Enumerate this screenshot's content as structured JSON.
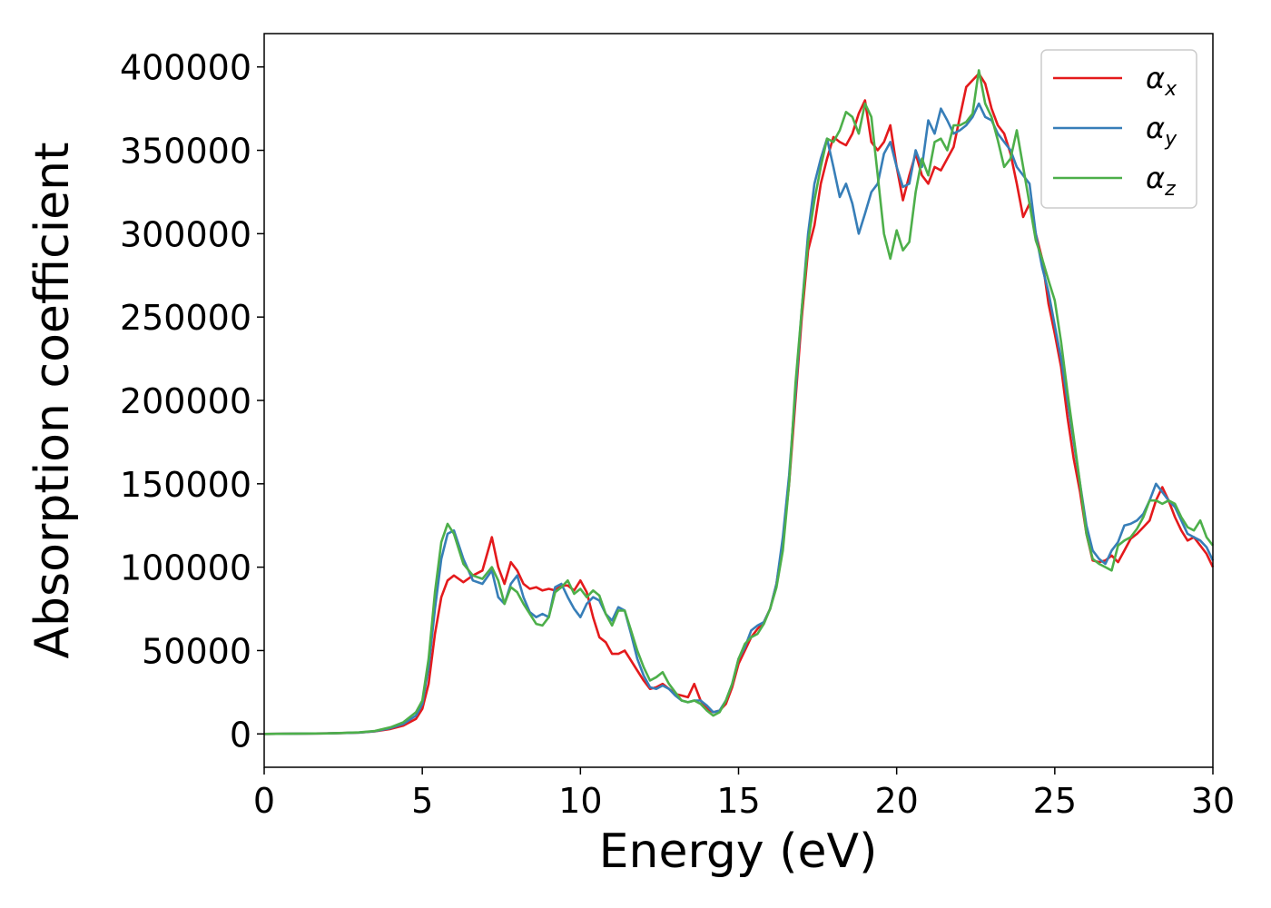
{
  "chart_data": {
    "type": "line",
    "title": "",
    "xlabel": "Energy (eV)",
    "ylabel": "Absorption coefficient",
    "xlim": [
      0,
      30
    ],
    "ylim": [
      -20000,
      420000
    ],
    "x_ticks": [
      0,
      5,
      10,
      15,
      20,
      25,
      30
    ],
    "y_ticks": [
      0,
      50000,
      100000,
      150000,
      200000,
      250000,
      300000,
      350000,
      400000
    ],
    "x_tick_labels": [
      "0",
      "5",
      "10",
      "15",
      "20",
      "25",
      "30"
    ],
    "y_tick_labels": [
      "0",
      "50000",
      "100000",
      "150000",
      "200000",
      "250000",
      "300000",
      "350000",
      "400000"
    ],
    "grid": false,
    "legend_position": "top-right",
    "series": [
      {
        "name": "α_x",
        "label_main": "α",
        "label_sub": "x",
        "color": "#e41a1c",
        "x": [
          0,
          2,
          3,
          3.5,
          4,
          4.4,
          4.8,
          5.0,
          5.2,
          5.4,
          5.6,
          5.8,
          6.0,
          6.3,
          6.6,
          6.9,
          7.2,
          7.4,
          7.6,
          7.8,
          8.0,
          8.2,
          8.4,
          8.6,
          8.8,
          9.0,
          9.2,
          9.4,
          9.6,
          9.8,
          10.0,
          10.2,
          10.4,
          10.6,
          10.8,
          11.0,
          11.2,
          11.4,
          11.6,
          11.8,
          12.0,
          12.2,
          12.4,
          12.6,
          12.8,
          13.0,
          13.2,
          13.4,
          13.6,
          13.8,
          14.0,
          14.2,
          14.4,
          14.6,
          14.8,
          15.0,
          15.2,
          15.4,
          15.6,
          15.8,
          16.0,
          16.2,
          16.4,
          16.6,
          16.8,
          17.0,
          17.2,
          17.4,
          17.6,
          17.8,
          18.0,
          18.2,
          18.4,
          18.6,
          18.8,
          19.0,
          19.2,
          19.4,
          19.6,
          19.8,
          20.0,
          20.2,
          20.4,
          20.6,
          20.8,
          21.0,
          21.2,
          21.4,
          21.6,
          21.8,
          22.0,
          22.2,
          22.4,
          22.6,
          22.8,
          23.0,
          23.2,
          23.4,
          23.6,
          23.8,
          24.0,
          24.2,
          24.4,
          24.6,
          24.8,
          25.0,
          25.2,
          25.4,
          25.6,
          25.8,
          26.0,
          26.2,
          26.4,
          26.6,
          26.8,
          27.0,
          27.2,
          27.4,
          27.6,
          27.8,
          28.0,
          28.2,
          28.4,
          28.6,
          28.8,
          29.0,
          29.2,
          29.4,
          29.6,
          29.8,
          30.0
        ],
        "y": [
          0,
          300,
          800,
          1500,
          3000,
          5000,
          9000,
          15000,
          30000,
          60000,
          82000,
          92000,
          95000,
          91000,
          95000,
          98000,
          118000,
          100000,
          90000,
          103000,
          98000,
          90000,
          87000,
          88000,
          86000,
          87000,
          86000,
          89000,
          89000,
          86000,
          92000,
          85000,
          70000,
          58000,
          55000,
          48000,
          48000,
          50000,
          44000,
          38000,
          32000,
          27000,
          28000,
          30000,
          27000,
          24000,
          23000,
          22000,
          30000,
          20000,
          15000,
          13000,
          14000,
          18000,
          28000,
          42000,
          50000,
          58000,
          63000,
          67000,
          75000,
          90000,
          115000,
          150000,
          200000,
          250000,
          290000,
          305000,
          330000,
          345000,
          358000,
          355000,
          353000,
          360000,
          372000,
          380000,
          355000,
          350000,
          355000,
          365000,
          340000,
          320000,
          335000,
          348000,
          335000,
          330000,
          340000,
          338000,
          345000,
          352000,
          370000,
          388000,
          392000,
          396000,
          390000,
          375000,
          365000,
          360000,
          348000,
          330000,
          310000,
          318000,
          300000,
          285000,
          258000,
          240000,
          220000,
          190000,
          165000,
          145000,
          120000,
          104000,
          103000,
          104000,
          107000,
          103000,
          110000,
          117000,
          120000,
          124000,
          128000,
          140000,
          148000,
          140000,
          130000,
          122000,
          116000,
          118000,
          113000,
          108000,
          100000
        ]
      },
      {
        "name": "α_y",
        "label_main": "α",
        "label_sub": "y",
        "color": "#377eb8",
        "x": [
          0,
          2,
          3,
          3.5,
          4,
          4.4,
          4.8,
          5.0,
          5.2,
          5.4,
          5.6,
          5.8,
          6.0,
          6.3,
          6.6,
          6.9,
          7.2,
          7.4,
          7.6,
          7.8,
          8.0,
          8.2,
          8.4,
          8.6,
          8.8,
          9.0,
          9.2,
          9.4,
          9.6,
          9.8,
          10.0,
          10.2,
          10.4,
          10.6,
          10.8,
          11.0,
          11.2,
          11.4,
          11.6,
          11.8,
          12.0,
          12.2,
          12.4,
          12.6,
          12.8,
          13.0,
          13.2,
          13.4,
          13.6,
          13.8,
          14.0,
          14.2,
          14.4,
          14.6,
          14.8,
          15.0,
          15.2,
          15.4,
          15.6,
          15.8,
          16.0,
          16.2,
          16.4,
          16.6,
          16.8,
          17.0,
          17.2,
          17.4,
          17.6,
          17.8,
          18.0,
          18.2,
          18.4,
          18.6,
          18.8,
          19.0,
          19.2,
          19.4,
          19.6,
          19.8,
          20.0,
          20.2,
          20.4,
          20.6,
          20.8,
          21.0,
          21.2,
          21.4,
          21.6,
          21.8,
          22.0,
          22.2,
          22.4,
          22.6,
          22.8,
          23.0,
          23.2,
          23.4,
          23.6,
          23.8,
          24.0,
          24.2,
          24.4,
          24.6,
          24.8,
          25.0,
          25.2,
          25.4,
          25.6,
          25.8,
          26.0,
          26.2,
          26.4,
          26.6,
          26.8,
          27.0,
          27.2,
          27.4,
          27.6,
          27.8,
          28.0,
          28.2,
          28.4,
          28.6,
          28.8,
          29.0,
          29.2,
          29.4,
          29.6,
          29.8,
          30.0
        ],
        "y": [
          0,
          300,
          800,
          1600,
          3500,
          6000,
          11000,
          18000,
          40000,
          75000,
          105000,
          120000,
          122000,
          105000,
          92000,
          90000,
          98000,
          82000,
          78000,
          90000,
          95000,
          82000,
          73000,
          70000,
          72000,
          70000,
          88000,
          90000,
          82000,
          75000,
          70000,
          78000,
          82000,
          80000,
          72000,
          68000,
          76000,
          74000,
          60000,
          45000,
          35000,
          28000,
          27000,
          29000,
          27000,
          23000,
          20000,
          19000,
          20000,
          20000,
          17000,
          13000,
          14000,
          20000,
          30000,
          45000,
          52000,
          62000,
          65000,
          67000,
          75000,
          90000,
          118000,
          155000,
          205000,
          255000,
          300000,
          330000,
          345000,
          357000,
          340000,
          322000,
          330000,
          318000,
          300000,
          312000,
          325000,
          330000,
          348000,
          355000,
          340000,
          328000,
          330000,
          350000,
          340000,
          368000,
          360000,
          375000,
          368000,
          360000,
          362000,
          365000,
          370000,
          378000,
          370000,
          368000,
          360000,
          355000,
          350000,
          340000,
          335000,
          330000,
          300000,
          280000,
          265000,
          245000,
          225000,
          200000,
          175000,
          150000,
          125000,
          110000,
          105000,
          102000,
          110000,
          115000,
          125000,
          126000,
          128000,
          132000,
          140000,
          150000,
          145000,
          140000,
          136000,
          128000,
          120000,
          118000,
          116000,
          112000,
          104000
        ]
      },
      {
        "name": "α_z",
        "label_main": "α",
        "label_sub": "z",
        "color": "#4daf4a",
        "x": [
          0,
          2,
          3,
          3.5,
          4,
          4.4,
          4.8,
          5.0,
          5.2,
          5.4,
          5.6,
          5.8,
          6.0,
          6.3,
          6.6,
          6.9,
          7.2,
          7.4,
          7.6,
          7.8,
          8.0,
          8.2,
          8.4,
          8.6,
          8.8,
          9.0,
          9.2,
          9.4,
          9.6,
          9.8,
          10.0,
          10.2,
          10.4,
          10.6,
          10.8,
          11.0,
          11.2,
          11.4,
          11.6,
          11.8,
          12.0,
          12.2,
          12.4,
          12.6,
          12.8,
          13.0,
          13.2,
          13.4,
          13.6,
          13.8,
          14.0,
          14.2,
          14.4,
          14.6,
          14.8,
          15.0,
          15.2,
          15.4,
          15.6,
          15.8,
          16.0,
          16.2,
          16.4,
          16.6,
          16.8,
          17.0,
          17.2,
          17.4,
          17.6,
          17.8,
          18.0,
          18.2,
          18.4,
          18.6,
          18.8,
          19.0,
          19.2,
          19.4,
          19.6,
          19.8,
          20.0,
          20.2,
          20.4,
          20.6,
          20.8,
          21.0,
          21.2,
          21.4,
          21.6,
          21.8,
          22.0,
          22.2,
          22.4,
          22.6,
          22.8,
          23.0,
          23.2,
          23.4,
          23.6,
          23.8,
          24.0,
          24.2,
          24.4,
          24.6,
          24.8,
          25.0,
          25.2,
          25.4,
          25.6,
          25.8,
          26.0,
          26.2,
          26.4,
          26.6,
          26.8,
          27.0,
          27.2,
          27.4,
          27.6,
          27.8,
          28.0,
          28.2,
          28.4,
          28.6,
          28.8,
          29.0,
          29.2,
          29.4,
          29.6,
          29.8,
          30.0
        ],
        "y": [
          0,
          300,
          900,
          1800,
          4000,
          7000,
          13000,
          20000,
          45000,
          85000,
          115000,
          126000,
          120000,
          102000,
          95000,
          93000,
          100000,
          92000,
          78000,
          88000,
          85000,
          78000,
          72000,
          66000,
          65000,
          70000,
          85000,
          88000,
          92000,
          84000,
          87000,
          82000,
          86000,
          83000,
          72000,
          65000,
          74000,
          74000,
          62000,
          50000,
          40000,
          32000,
          34000,
          37000,
          30000,
          25000,
          20000,
          19000,
          20000,
          18000,
          14000,
          11000,
          13000,
          20000,
          30000,
          45000,
          54000,
          58000,
          60000,
          66000,
          75000,
          88000,
          110000,
          150000,
          210000,
          255000,
          295000,
          320000,
          340000,
          357000,
          355000,
          362000,
          373000,
          370000,
          360000,
          378000,
          370000,
          335000,
          300000,
          285000,
          302000,
          290000,
          295000,
          325000,
          345000,
          335000,
          355000,
          357000,
          350000,
          365000,
          365000,
          367000,
          372000,
          398000,
          378000,
          370000,
          356000,
          340000,
          345000,
          362000,
          340000,
          318000,
          296000,
          285000,
          272000,
          260000,
          235000,
          205000,
          178000,
          150000,
          120000,
          105000,
          102000,
          100000,
          98000,
          113000,
          116000,
          118000,
          123000,
          130000,
          140000,
          140000,
          138000,
          140000,
          138000,
          130000,
          124000,
          122000,
          128000,
          118000,
          113000
        ]
      }
    ]
  }
}
